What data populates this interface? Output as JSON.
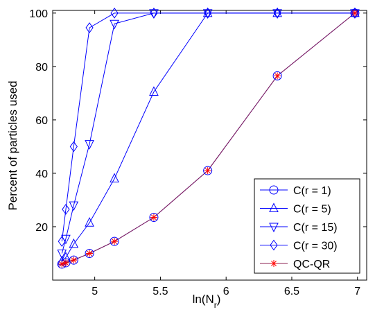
{
  "chart_data": {
    "type": "line",
    "xlabel": "ln(N",
    "xlabel_sub": "r",
    "xlabel_close": ")",
    "ylabel": "Percent of particles used",
    "xlim": [
      4.68,
      7.07
    ],
    "ylim": [
      0,
      101
    ],
    "xticks": [
      5,
      5.5,
      6,
      6.5,
      7
    ],
    "xtick_labels": [
      "5",
      "5.5",
      "6",
      "6.5",
      "7"
    ],
    "yticks": [
      20,
      40,
      60,
      80,
      100
    ],
    "ytick_labels": [
      "20",
      "40",
      "60",
      "80",
      "100"
    ],
    "grid": false,
    "legend_position": "bottom-right",
    "series": [
      {
        "name": "C(r = 1)",
        "marker": "circle",
        "color": "#0000ff",
        "x": [
          4.75,
          4.78,
          4.84,
          4.96,
          5.15,
          5.45,
          5.86,
          6.39,
          6.98
        ],
        "y": [
          6,
          6.5,
          7.5,
          10,
          14.5,
          23.5,
          41,
          76.5,
          100
        ]
      },
      {
        "name": "C(r = 5)",
        "marker": "triangle-up",
        "color": "#0000ff",
        "x": [
          4.75,
          4.78,
          4.84,
          4.96,
          5.15,
          5.45,
          5.86,
          6.39,
          6.98
        ],
        "y": [
          7,
          8.5,
          13.5,
          21.5,
          38,
          70.5,
          100,
          100,
          100
        ]
      },
      {
        "name": "C(r = 15)",
        "marker": "triangle-down",
        "color": "#0000ff",
        "x": [
          4.75,
          4.78,
          4.84,
          4.96,
          5.15,
          5.45,
          5.86,
          6.39,
          6.98
        ],
        "y": [
          10,
          15.5,
          28,
          51,
          96,
          100,
          100,
          100,
          100
        ]
      },
      {
        "name": "C(r = 30)",
        "marker": "diamond",
        "color": "#0000ff",
        "x": [
          4.75,
          4.78,
          4.84,
          4.96,
          5.15,
          5.45,
          5.86,
          6.39,
          6.98
        ],
        "y": [
          14.5,
          26.5,
          50,
          94.5,
          100,
          100,
          100,
          100,
          100
        ]
      },
      {
        "name": "QC-QR",
        "marker": "star",
        "color": "#ff0000",
        "line_color": "#8b2252",
        "x": [
          4.75,
          4.78,
          4.84,
          4.96,
          5.15,
          5.45,
          5.86,
          6.39,
          6.98
        ],
        "y": [
          6,
          6.5,
          7.5,
          10,
          14.5,
          23.5,
          41,
          76.5,
          100
        ]
      }
    ]
  }
}
